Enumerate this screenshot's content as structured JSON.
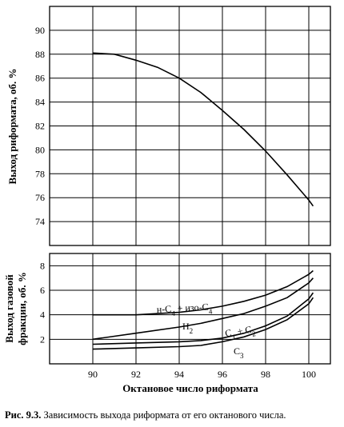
{
  "chart_data": [
    {
      "type": "line",
      "title": "",
      "xlabel": "",
      "ylabel": "Выход риформата, об. %",
      "xlim": [
        88,
        101
      ],
      "ylim": [
        72,
        92
      ],
      "x_grid": [
        88,
        90,
        92,
        94,
        96,
        98,
        100
      ],
      "y_ticks": [
        74,
        76,
        78,
        80,
        82,
        84,
        86,
        88,
        90
      ],
      "grid": true,
      "series": [
        {
          "x": [
            90,
            91,
            92,
            93,
            94,
            95,
            96,
            97,
            98,
            99,
            100,
            100.2
          ],
          "y": [
            88.1,
            88.0,
            87.5,
            86.9,
            86.0,
            84.8,
            83.3,
            81.7,
            79.9,
            77.9,
            75.8,
            75.3
          ]
        }
      ]
    },
    {
      "type": "line",
      "title": "",
      "xlabel": "Октановое число риформата",
      "ylabel": "Выход газовой фракции, об. %",
      "xlim": [
        88,
        101
      ],
      "ylim": [
        0,
        9
      ],
      "x_ticks": [
        90,
        92,
        94,
        96,
        98,
        100
      ],
      "y_ticks": [
        2,
        4,
        6,
        8
      ],
      "grid": true,
      "series": [
        {
          "x": [
            90,
            92,
            94,
            95,
            96,
            97,
            98,
            99,
            100,
            100.2
          ],
          "y": [
            4.0,
            4.0,
            4.2,
            4.4,
            4.7,
            5.1,
            5.6,
            6.3,
            7.3,
            7.6
          ]
        },
        {
          "x": [
            90,
            92,
            94,
            95,
            96,
            97,
            98,
            99,
            100,
            100.2
          ],
          "y": [
            2.0,
            2.5,
            3.0,
            3.3,
            3.7,
            4.1,
            4.7,
            5.4,
            6.6,
            7.0
          ]
        },
        {
          "x": [
            90,
            92,
            94,
            95,
            96,
            97,
            98,
            99,
            100,
            100.2
          ],
          "y": [
            1.6,
            1.7,
            1.8,
            1.9,
            2.1,
            2.5,
            3.1,
            3.9,
            5.3,
            5.8
          ]
        },
        {
          "x": [
            90,
            92,
            94,
            95,
            96,
            97,
            98,
            99,
            100,
            100.2
          ],
          "y": [
            1.2,
            1.3,
            1.4,
            1.5,
            1.8,
            2.2,
            2.8,
            3.6,
            4.9,
            5.4
          ]
        }
      ],
      "annotations": {
        "butanes_prefix": "н-С",
        "butanes_sub1": "4",
        "butanes_mid": " + изо-С",
        "butanes_sub2": "4",
        "h2": "Н",
        "h2_sub": "2",
        "c1c2_a": "С",
        "c1c2_sub1": "1",
        "c1c2_mid": " + С",
        "c1c2_sub2": "2",
        "c3": "С",
        "c3_sub": "3"
      }
    }
  ],
  "caption": {
    "label": "Рис. 9.3.",
    "text": " Зависимость выхода риформата от его октанового числа."
  }
}
